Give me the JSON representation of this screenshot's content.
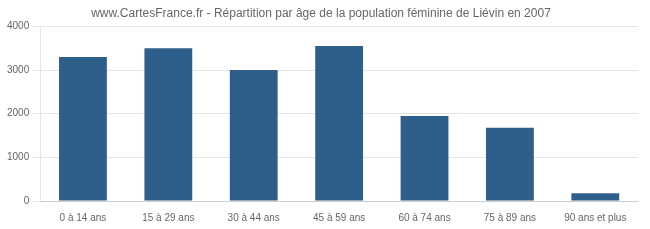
{
  "chart_data": {
    "type": "bar",
    "title": "www.CartesFrance.fr - Répartition par âge de la population féminine de Liévin en 2007",
    "categories": [
      "0 à 14 ans",
      "15 à 29 ans",
      "30 à 44 ans",
      "45 à 59 ans",
      "60 à 74 ans",
      "75 à 89 ans",
      "90 ans et plus"
    ],
    "values": [
      3300,
      3500,
      3000,
      3550,
      1950,
      1680,
      175
    ],
    "color": "#2e5f8a",
    "ylim": [
      0,
      4000
    ],
    "yticks": [
      0,
      1000,
      2000,
      3000,
      4000
    ],
    "grid": true
  }
}
